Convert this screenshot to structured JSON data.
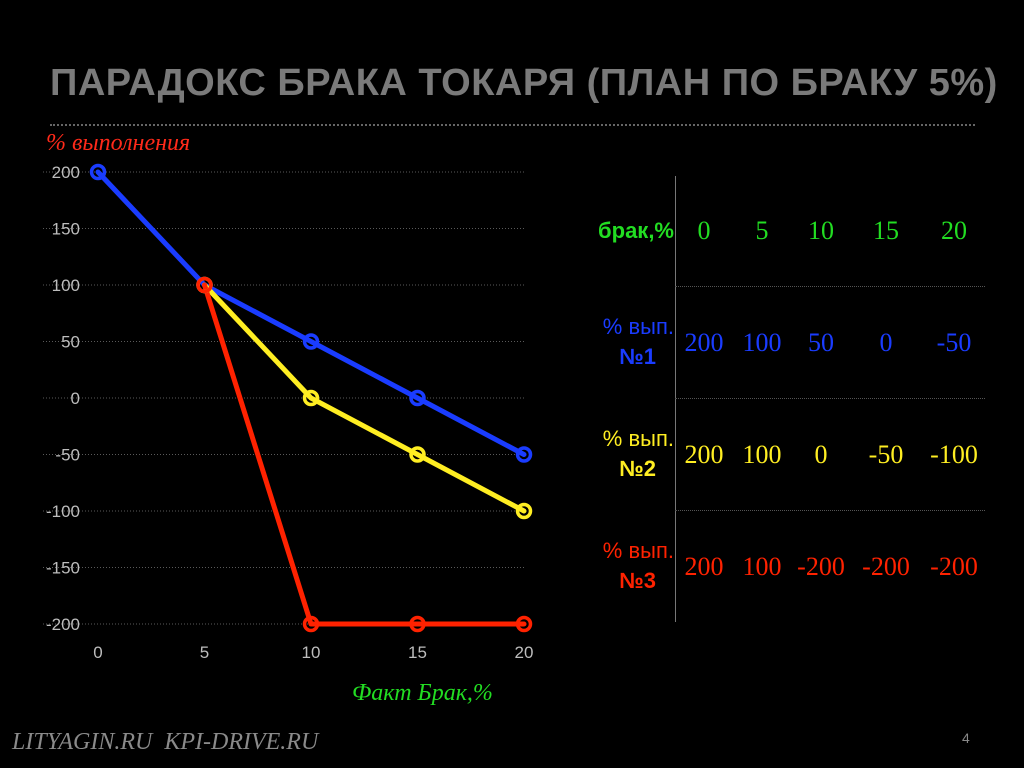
{
  "slide": {
    "title": "ПАРАДОКС БРАКА ТОКАРЯ (ПЛАН ПО БРАКУ 5%)",
    "footer": "LITYAGIN.RU  KPI-DRIVE.RU",
    "page_number": "4"
  },
  "chart_data": {
    "type": "line",
    "xlabel": "Факт Брак,%",
    "ylabel": "% выполнения",
    "x": [
      0,
      5,
      10,
      15,
      20
    ],
    "xlim": [
      0,
      20
    ],
    "ylim": [
      -200,
      200
    ],
    "x_ticks": [
      "0",
      "5",
      "10",
      "15",
      "20"
    ],
    "y_ticks": [
      "200",
      "150",
      "100",
      "50",
      "0",
      "-50",
      "-100",
      "-150",
      "-200"
    ],
    "grid": true,
    "series": [
      {
        "x": [
          0,
          5,
          10,
          15,
          20
        ],
        "values": [
          200,
          100,
          50,
          0,
          -50
        ],
        "color": "#1a3cff"
      },
      {
        "x": [
          5,
          10,
          15,
          20
        ],
        "values": [
          100,
          0,
          -50,
          -100
        ],
        "color": "#ffee22"
      },
      {
        "x": [
          5,
          10,
          15,
          20
        ],
        "values": [
          100,
          -200,
          -200,
          -200
        ],
        "color": "#ff2200"
      }
    ]
  },
  "table": {
    "header": {
      "label": "брак,%",
      "values": [
        "0",
        "5",
        "10",
        "15",
        "20"
      ],
      "color": "#22dd22"
    },
    "rows": [
      {
        "label_line1": "% вып.",
        "label_line2": "№1",
        "values": [
          "200",
          "100",
          "50",
          "0",
          "-50"
        ],
        "color": "#1a3cff"
      },
      {
        "label_line1": "% вып.",
        "label_line2": "№2",
        "values": [
          "200",
          "100",
          "0",
          "-50",
          "-100"
        ],
        "color": "#ffee22"
      },
      {
        "label_line1": "% вып.",
        "label_line2": "№3",
        "values": [
          "200",
          "100",
          "-200",
          "-200",
          "-200"
        ],
        "color": "#ff2200"
      }
    ]
  }
}
